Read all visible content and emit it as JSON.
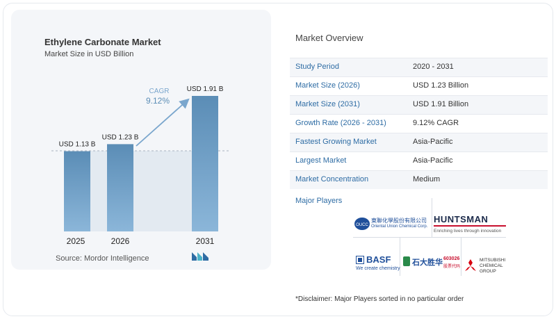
{
  "chart": {
    "title": "Ethylene Carbonate Market",
    "subtitle": "Market Size in USD Billion",
    "cagr_label": "CAGR",
    "cagr_value": "9.12%",
    "source": "Source:  Mordor Intelligence"
  },
  "chart_data": {
    "type": "bar",
    "categories": [
      "2025",
      "2026",
      "2031"
    ],
    "values": [
      1.13,
      1.23,
      1.91
    ],
    "data_labels": [
      "USD 1.13 B",
      "USD 1.23 B",
      "USD 1.91 B"
    ],
    "title": "Ethylene Carbonate Market",
    "subtitle": "Market Size in USD Billion",
    "ylim": [
      0,
      1.91
    ],
    "grid": false,
    "bar_color": "#5b8db6"
  },
  "overview": {
    "title": "Market Overview",
    "rows": [
      {
        "label": "Study Period",
        "value": "2020 - 2031"
      },
      {
        "label": "Market Size (2026)",
        "value": "USD 1.23 Billion"
      },
      {
        "label": "Market Size (2031)",
        "value": "USD 1.91 Billion"
      },
      {
        "label": "Growth Rate (2026 - 2031)",
        "value": "9.12% CAGR"
      },
      {
        "label": "Fastest Growing Market",
        "value": "Asia-Pacific"
      },
      {
        "label": "Largest Market",
        "value": "Asia-Pacific"
      },
      {
        "label": "Market Concentration",
        "value": "Medium"
      }
    ]
  },
  "players": {
    "title": "Major Players",
    "logos": [
      {
        "name": "Oriental Union Chemical Corp.",
        "mark": "OUCC",
        "cn": "東聯化學股份有限公司",
        "sub": "Oriental Union Chemical Corp."
      },
      {
        "name": "Huntsman",
        "mark": "HUNTSMAN",
        "sub": "Enriching lives through innovation"
      },
      {
        "name": "BASF",
        "mark": "BASF",
        "sub": "We create chemistry"
      },
      {
        "name": "Shida Shenghua",
        "mark": "石大胜华",
        "code": "603026",
        "sub": "股票代码"
      },
      {
        "name": "Mitsubishi Chemical Group",
        "mark": "MITSUBISHI",
        "line2": "CHEMICAL",
        "line3": "GROUP"
      }
    ]
  },
  "disclaimer": "*Disclaimer: Major Players sorted in no particular order",
  "colors": {
    "accent": "#2e6ca4",
    "bar": "#5b8db6",
    "card_bg": "#f4f6f9",
    "cagr_text": "#5b8db6"
  }
}
